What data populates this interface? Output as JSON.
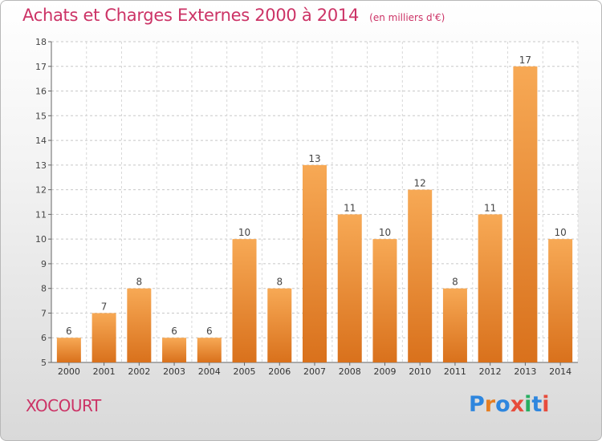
{
  "header": {
    "title": "Achats et Charges Externes 2000 à 2014",
    "subtitle": "(en milliers d'€)"
  },
  "commune": "XOCOURT",
  "logo": {
    "letters": [
      {
        "char": "P",
        "color": "#2e86de"
      },
      {
        "char": "r",
        "color": "#e67e22"
      },
      {
        "char": "o",
        "color": "#2e86de"
      },
      {
        "char": "x",
        "color": "#e74c3c"
      },
      {
        "char": "i",
        "color": "#27ae60"
      },
      {
        "char": "t",
        "color": "#2e86de"
      },
      {
        "char": "i",
        "color": "#e74c3c"
      }
    ]
  },
  "colors": {
    "bar_light": "#f7a955",
    "bar_dark": "#d9711c",
    "title": "#cc3366"
  },
  "chart_data": {
    "type": "bar",
    "categories": [
      "2000",
      "2001",
      "2002",
      "2003",
      "2004",
      "2005",
      "2006",
      "2007",
      "2008",
      "2009",
      "2010",
      "2011",
      "2012",
      "2013",
      "2014"
    ],
    "values": [
      6,
      7,
      8,
      6,
      6,
      10,
      8,
      13,
      11,
      10,
      12,
      8,
      11,
      17,
      10
    ],
    "ylim": [
      5,
      18
    ],
    "yticks": [
      5,
      6,
      7,
      8,
      9,
      10,
      11,
      12,
      13,
      14,
      15,
      16,
      17,
      18
    ],
    "grid": true,
    "data_labels": true
  }
}
